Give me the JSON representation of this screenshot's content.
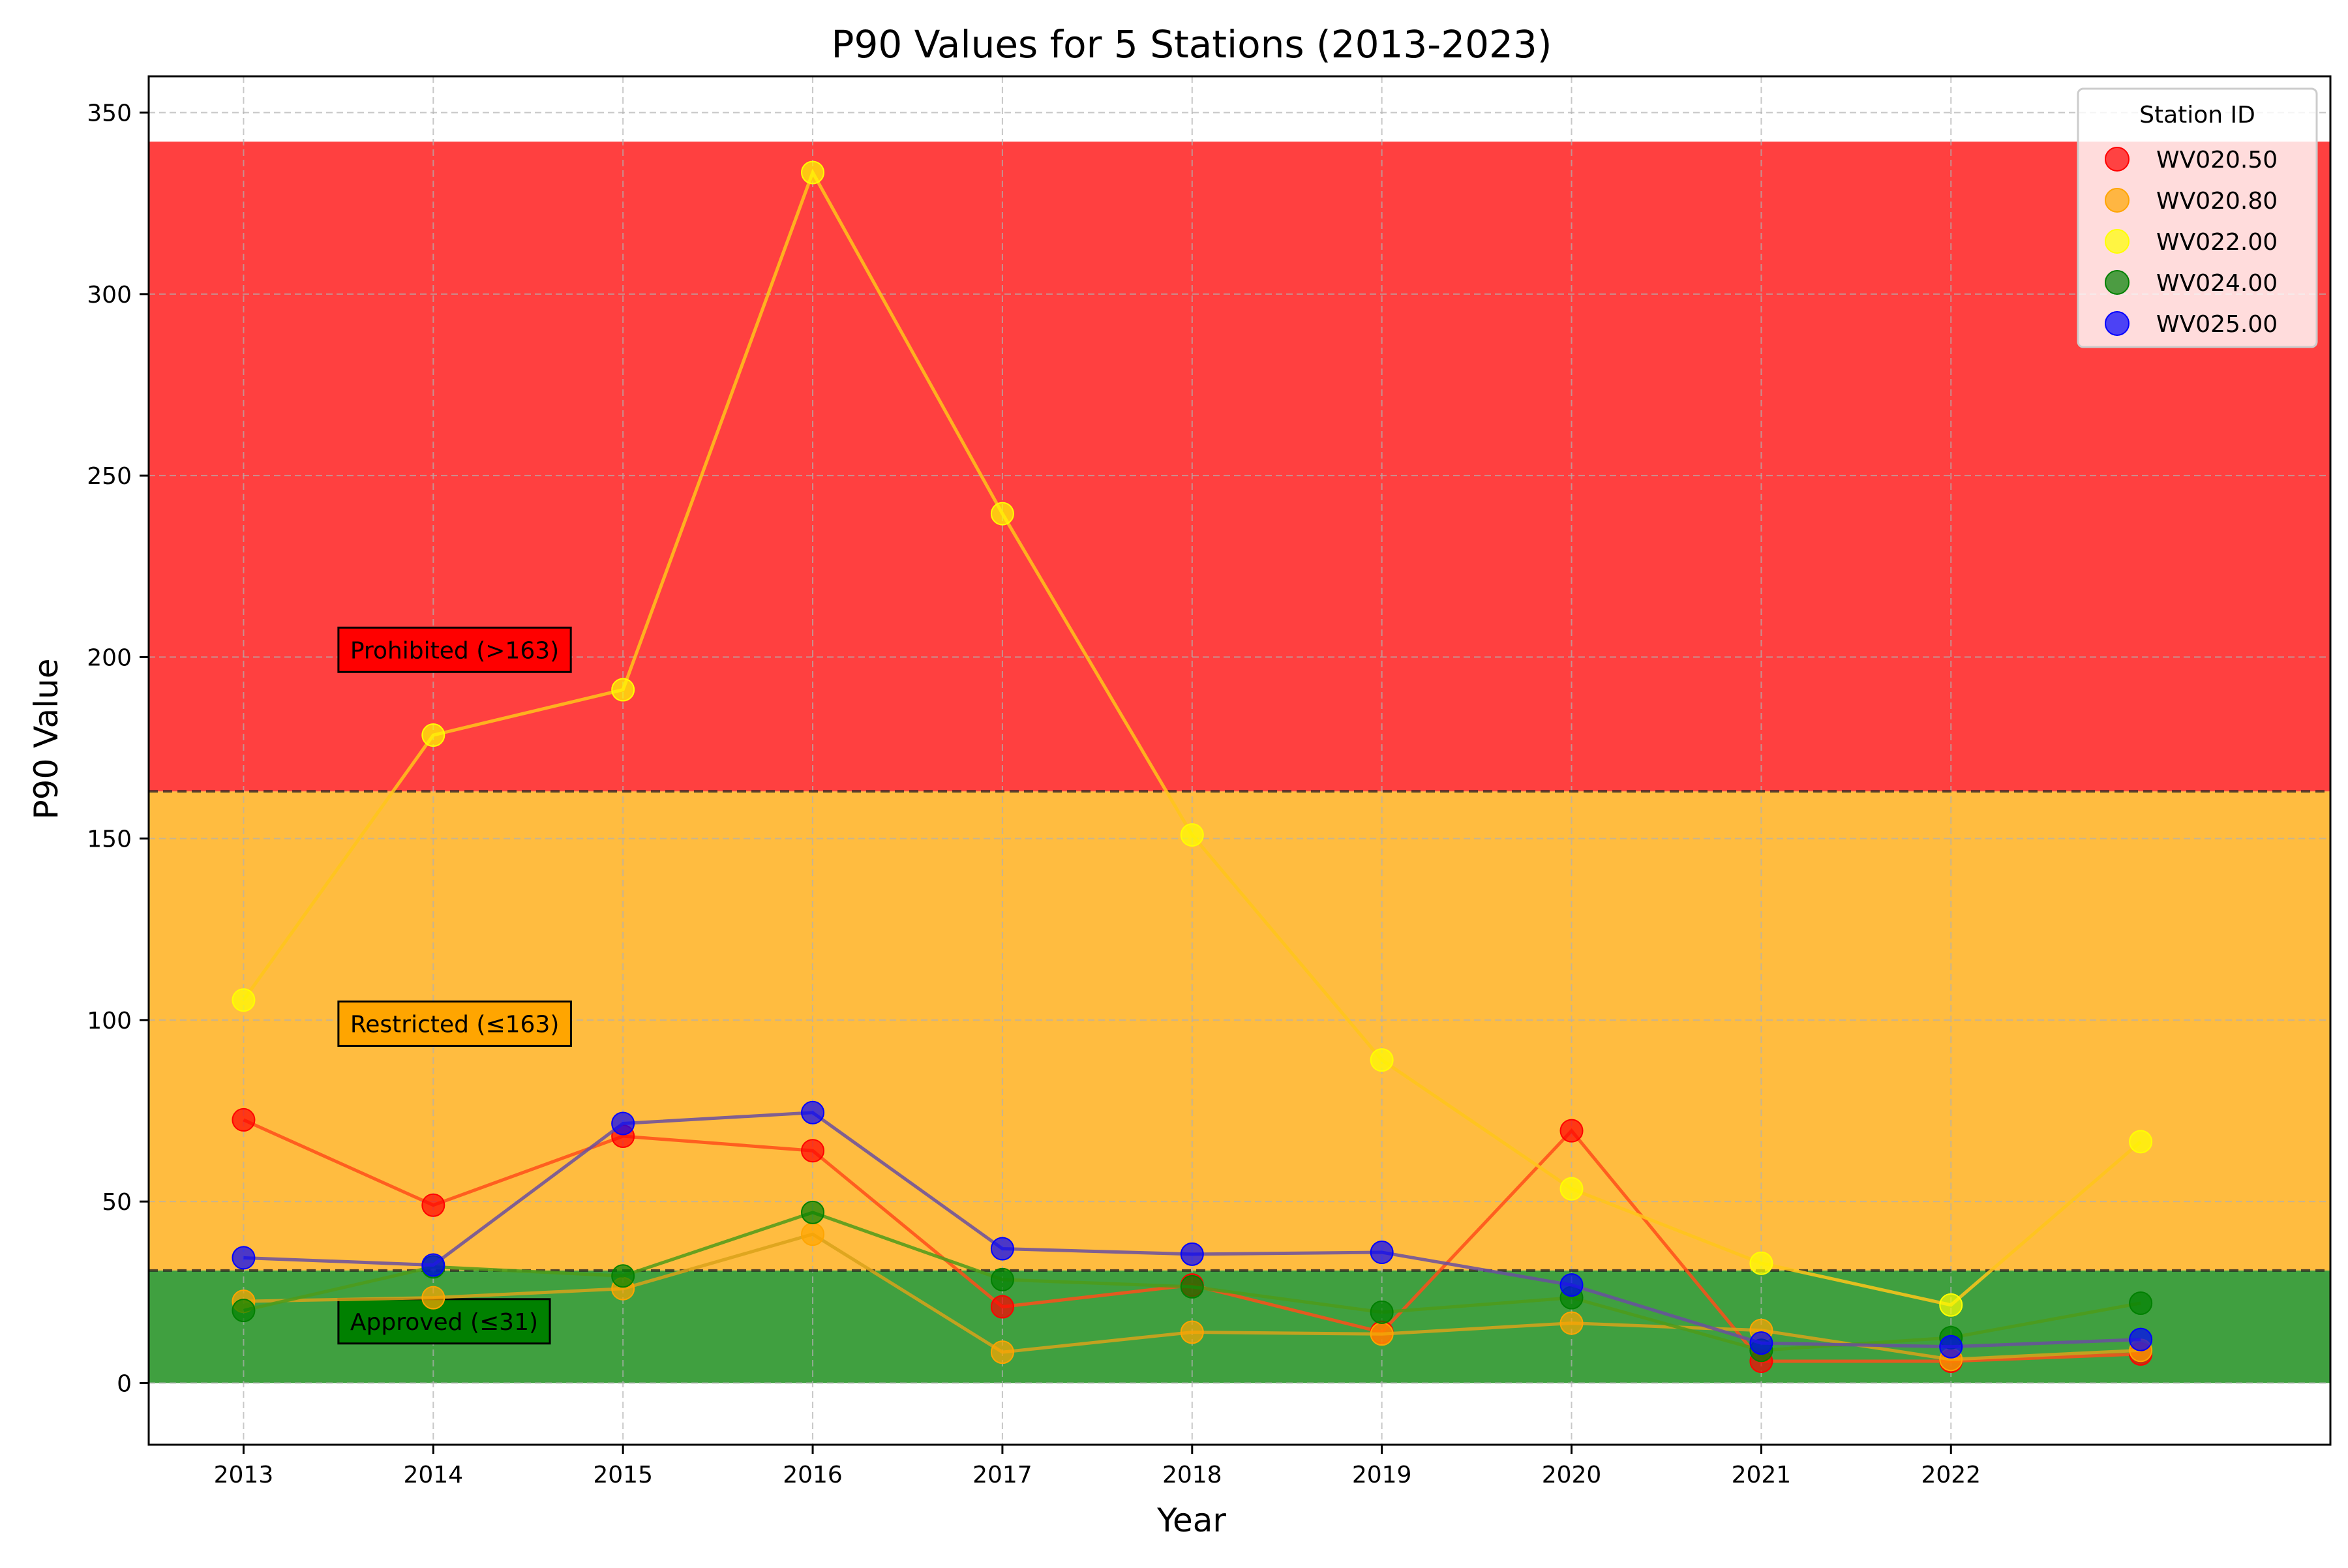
{
  "chart_data": {
    "type": "line",
    "title": "P90 Values for 5 Stations (2013-2023)",
    "xlabel": "Year",
    "ylabel": "P90 Value",
    "x": [
      2013,
      2014,
      2015,
      2016,
      2017,
      2018,
      2019,
      2020,
      2021,
      2022,
      2023
    ],
    "x_tick_labels": [
      "2013",
      "2014",
      "2015",
      "2016",
      "2017",
      "2018",
      "2019",
      "2020",
      "2021",
      "2022"
    ],
    "xlim": [
      2012.5,
      2024.0
    ],
    "ylim": [
      -17,
      360
    ],
    "y_ticks": [
      0,
      50,
      100,
      150,
      200,
      250,
      300,
      350
    ],
    "grid": true,
    "bands": [
      {
        "label": "Approved (≤31)",
        "from": 0,
        "to": 31,
        "color": "#008000",
        "label_x": 2013.5,
        "label_y": 17
      },
      {
        "label": "Restricted (≤163)",
        "from": 31,
        "to": 163,
        "color": "#ffa500",
        "label_x": 2013.5,
        "label_y": 99
      },
      {
        "label": "Prohibited (>163)",
        "from": 163,
        "to": 342,
        "color": "#ff0000",
        "label_x": 2013.5,
        "label_y": 202
      }
    ],
    "thresholds": [
      31,
      163
    ],
    "legend": {
      "title": "Station ID",
      "position": "top-right"
    },
    "series": [
      {
        "name": "WV020.50",
        "color": "#ff0000",
        "line_color": "#ff4d1a",
        "values": [
          72.5,
          49,
          68,
          64,
          21,
          27,
          14,
          69.5,
          6,
          6,
          8
        ]
      },
      {
        "name": "WV020.80",
        "color": "#ffa500",
        "line_color": "#d9a21a",
        "values": [
          22.5,
          23.5,
          26,
          41,
          8.5,
          14,
          13.5,
          16.5,
          14.5,
          6.5,
          9
        ]
      },
      {
        "name": "WV022.00",
        "color": "#ffff00",
        "line_color": "#ffc61a",
        "values": [
          105.5,
          178.5,
          191,
          333.5,
          239.5,
          151,
          89,
          53.5,
          33,
          21.5,
          66.5
        ]
      },
      {
        "name": "WV024.00",
        "color": "#008000",
        "line_color": "#4d9b1a",
        "values": [
          20,
          32,
          29.5,
          47,
          28.5,
          26.5,
          19.5,
          23.5,
          9,
          12.5,
          22
        ]
      },
      {
        "name": "WV025.00",
        "color": "#0000ff",
        "line_color": "#6a4fa0",
        "values": [
          34.5,
          32.5,
          71.5,
          74.5,
          37,
          35.5,
          36,
          27,
          11,
          10,
          12
        ]
      }
    ]
  }
}
